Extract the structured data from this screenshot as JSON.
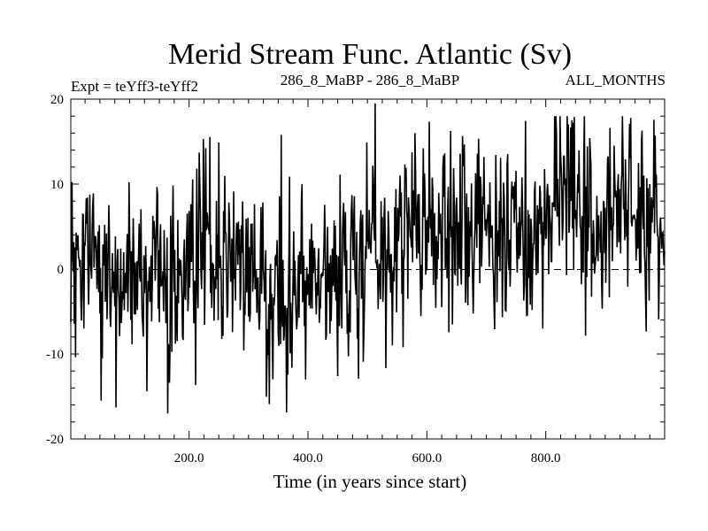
{
  "chart_data": {
    "type": "line",
    "title": "Merid Stream Func. Atlantic (Sv)",
    "subtitle_left": "Expt = teYff3-teYff2",
    "subtitle_center": "286_8_MaBP - 286_8_MaBP",
    "subtitle_right": "ALL_MONTHS",
    "xlabel": "Time (in years since start)",
    "ylabel": "",
    "xlim": [
      1,
      1000
    ],
    "ylim": [
      -20,
      20
    ],
    "xticks": [
      200,
      400,
      600,
      800
    ],
    "xtick_labels": [
      "200.0",
      "400.0",
      "600.0",
      "800.0"
    ],
    "yticks": [
      -20,
      -10,
      0,
      10,
      20
    ],
    "ytick_labels": [
      "-20",
      "-10",
      "0",
      "10",
      "20"
    ],
    "zero_line": "dashed",
    "series": [
      {
        "name": "Merid Stream Func. Atlantic",
        "trend_x": [
          1,
          100,
          200,
          300,
          350,
          400,
          450,
          500,
          600,
          700,
          800,
          850,
          900,
          1000
        ],
        "trend_y": [
          -2,
          -1,
          0,
          0,
          -2.5,
          -1.5,
          0,
          3,
          4,
          4.5,
          4.5,
          8.5,
          6,
          5
        ],
        "peaks": [
          {
            "x": 77,
            "y": -16.3
          },
          {
            "x": 129,
            "y": -14.4
          },
          {
            "x": 250,
            "y": 14.9
          },
          {
            "x": 335,
            "y": -15.9
          },
          {
            "x": 355,
            "y": 15.8
          },
          {
            "x": 485,
            "y": -12.9
          },
          {
            "x": 513,
            "y": 19.5
          },
          {
            "x": 580,
            "y": 16.0
          },
          {
            "x": 795,
            "y": -7.0
          },
          {
            "x": 848,
            "y": 17.9
          },
          {
            "x": 908,
            "y": 16.6
          },
          {
            "x": 962,
            "y": 16.3
          }
        ],
        "noise_amplitude_sv": 5.2,
        "n_points": 1000
      }
    ]
  }
}
